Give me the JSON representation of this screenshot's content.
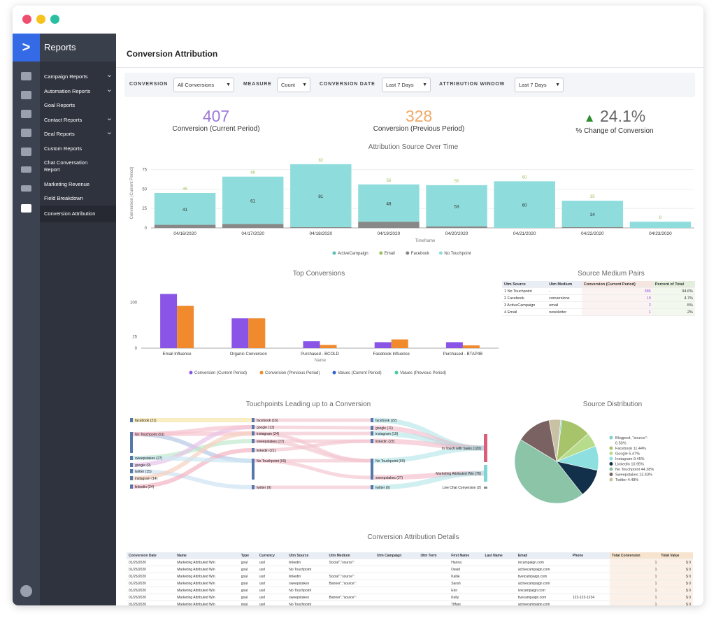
{
  "sidebar": {
    "title": "Reports",
    "items": [
      {
        "label": "Campaign Reports",
        "chevron": true
      },
      {
        "label": "Automation Reports",
        "chevron": true
      },
      {
        "label": "Goal Reports",
        "chevron": false
      },
      {
        "label": "Contact Reports",
        "chevron": true
      },
      {
        "label": "Deal Reports",
        "chevron": true
      },
      {
        "label": "Custom Reports",
        "chevron": false
      },
      {
        "label": "Chat Conversation Report",
        "chevron": false
      },
      {
        "label": "Marketing Revenue",
        "chevron": false
      },
      {
        "label": "Field Breakdown",
        "chevron": false
      },
      {
        "label": "Conversion Attribution",
        "chevron": false,
        "active": true
      }
    ]
  },
  "page": {
    "title": "Conversion Attribution"
  },
  "filters": {
    "conversion_label": "CONVERSION",
    "conversion_value": "All Conversions",
    "measure_label": "MEASURE",
    "measure_value": "Count",
    "date_label": "CONVERSION DATE",
    "date_value": "Last 7 Days",
    "window_label": "ATTRIBUTION WINDOW",
    "window_value": "Last 7 Days"
  },
  "kpis": {
    "current_value": "407",
    "current_label": "Conversion (Current Period)",
    "previous_value": "328",
    "previous_label": "Conversion (Previous Period)",
    "change_value": "24.1%",
    "change_label": "% Change of Conversion",
    "colors": {
      "current": "#9b7bd6",
      "previous": "#f0a868",
      "change": "#666666",
      "arrow": "#2e8b2e"
    }
  },
  "chart_data": [
    {
      "type": "bar",
      "title": "Attribution Source Over Time",
      "xlabel": "Timeframe",
      "ylabel": "Conversion (Current Period)",
      "categories": [
        "04/16/2020",
        "04/17/2020",
        "04/18/2020",
        "04/19/2020",
        "04/20/2020",
        "04/21/2020",
        "04/22/2020",
        "04/23/2020"
      ],
      "totals": [
        45,
        66,
        82,
        56,
        55,
        60,
        35,
        8
      ],
      "inner_labels": [
        41,
        61,
        81,
        48,
        53,
        60,
        34,
        null
      ],
      "series": [
        {
          "name": "ActiveCampaign",
          "values": [
            0,
            0,
            0,
            0,
            0,
            0,
            0,
            0
          ],
          "color": "#5bbfb5"
        },
        {
          "name": "Email",
          "values": [
            0,
            0,
            0,
            0,
            0,
            0,
            0,
            0
          ],
          "color": "#9bc15a"
        },
        {
          "name": "Facebook",
          "values": [
            4,
            5,
            1,
            8,
            2,
            0,
            1,
            0
          ],
          "color": "#888888"
        },
        {
          "name": "No Touchpoint",
          "values": [
            41,
            61,
            81,
            48,
            53,
            60,
            34,
            8
          ],
          "color": "#8fdcdc"
        }
      ],
      "ylim": [
        0,
        90
      ],
      "yticks": [
        0,
        25,
        50,
        75
      ]
    },
    {
      "type": "bar",
      "title": "Top Conversions",
      "xlabel": "Name",
      "categories": [
        "Email Influence",
        "Organic Conversion",
        "Purchased - BCOLD",
        "Facebook Influence",
        "Purchased - BTAP4B"
      ],
      "series": [
        {
          "name": "Conversion (Current Period)",
          "values": [
            118,
            65,
            15,
            13,
            13
          ],
          "color": "#8a55e6"
        },
        {
          "name": "Conversion (Previous Period)",
          "values": [
            92,
            65,
            7,
            19,
            6
          ],
          "color": "#f08a2c"
        },
        {
          "name": "Values (Current Period)",
          "values": [
            0,
            0,
            0,
            0,
            0
          ],
          "color": "#2f5fd0"
        },
        {
          "name": "Values (Previous Period)",
          "values": [
            0,
            0,
            0,
            0,
            0
          ],
          "color": "#3fcf9f"
        }
      ],
      "ylim": [
        0,
        140
      ],
      "yticks": [
        0,
        25,
        100
      ]
    },
    {
      "type": "pie",
      "title": "Source Distribution",
      "slices": [
        {
          "label": "Blogpost, \"source\":",
          "value": 0.5,
          "color": "#7fd0cf"
        },
        {
          "label": "Facebook",
          "value": 11.44,
          "color": "#a8c46a"
        },
        {
          "label": "Google",
          "value": 5.47,
          "color": "#b7dc8b"
        },
        {
          "label": "Instagram",
          "value": 9.45,
          "color": "#8ee0e0"
        },
        {
          "label": "LinkedIn",
          "value": 10.95,
          "color": "#13304a"
        },
        {
          "label": "No Touchpoint",
          "value": 44.28,
          "color": "#8cc4a8"
        },
        {
          "label": "Sweepstakes",
          "value": 13.43,
          "color": "#7a6262"
        },
        {
          "label": "Twitter",
          "value": 4.48,
          "color": "#c9c1a4"
        }
      ],
      "legend": [
        "Blogpost, \"source\":",
        "0.50%",
        "Facebook 11.44%",
        "Google 5.47%",
        "Instagram 9.45%",
        "LinkedIn 10.95%",
        "No Touchpoint 44.28%",
        "Sweepstakes 13.43%",
        "Twitter 4.48%"
      ]
    }
  ],
  "source_medium": {
    "title": "Source Medium Pairs",
    "headers": [
      "Utm Source",
      "Utm Medium",
      "Conversion (Current Period)",
      "Percent of Total"
    ],
    "rows": [
      {
        "idx": "1",
        "source": "No Touchpoint",
        "medium": "-",
        "conv": "385",
        "pct": "94.6%"
      },
      {
        "idx": "2",
        "source": "Facebook",
        "medium": "conversions",
        "conv": "19",
        "pct": "4.7%"
      },
      {
        "idx": "3",
        "source": "ActiveCampaign",
        "medium": "email",
        "conv": "2",
        "pct": ".5%"
      },
      {
        "idx": "4",
        "source": "Email",
        "medium": "newsletter",
        "conv": "1",
        "pct": ".2%"
      }
    ]
  },
  "sankey": {
    "title": "Touchpoints Leading up to a Conversion",
    "col1": [
      "facebook (21)",
      "No Touchpoint (91)",
      "sweepstakes (27)",
      "google (9)",
      "twitter (15)",
      "instagram (14)",
      "linkedin (24)"
    ],
    "col2": [
      "facebook (16)",
      "google (13)",
      "instagram (24)",
      "sweepstakes (27)",
      "linkedin (21)",
      "No Touchpoint (69)",
      "twitter (9)"
    ],
    "col3": [
      "facebook (22)",
      "google (11)",
      "instagram (19)",
      "linkedin (23)",
      "No Touchpoint (69)",
      "sweepstakes (27)",
      "twitter (6)"
    ],
    "col4": [
      "In Touch with Sales (120)",
      "Marketing Attributed Win (76)",
      "Live Chat Conversion (2)"
    ]
  },
  "details": {
    "title": "Conversion Attribution Details",
    "headers": [
      "Conversion Date",
      "Name",
      "Type",
      "Currency",
      "Utm Source",
      "Utm Medium",
      "Utm Campaign",
      "Utm Term",
      "First Name",
      "Last Name",
      "Email",
      "Phone",
      "Total Conversion",
      "Total Value"
    ],
    "rows": [
      [
        "01/25/2020",
        "Marketing Attributed Win",
        "goal",
        "usd",
        "linkedin",
        "Social\",\"source\":",
        "",
        "",
        "Hanna",
        "",
        "recampaign.com",
        "",
        "1",
        "$ 0"
      ],
      [
        "01/25/2020",
        "Marketing Attributed Win",
        "goal",
        "usd",
        "No Touchpoint",
        "",
        "",
        "",
        "David",
        "",
        "activecampaign.com",
        "",
        "1",
        "$ 0"
      ],
      [
        "01/25/2020",
        "Marketing Attributed Win",
        "goal",
        "usd",
        "linkedin",
        "Social\",\"source\":",
        "",
        "",
        "Kallie",
        "",
        "tiveicampaign.com",
        "",
        "1",
        "$ 0"
      ],
      [
        "01/25/2020",
        "Marketing Attributed Win",
        "goal",
        "usd",
        "sweepstakes",
        "Banner\",\"source\":",
        "",
        "",
        "Sarah",
        "",
        "activecampaign.com",
        "",
        "1",
        "$ 0"
      ],
      [
        "01/25/2020",
        "Marketing Attributed Win",
        "goal",
        "usd",
        "No Touchpoint",
        "",
        "",
        "",
        "Erin",
        "",
        "ivecampaign.com",
        "",
        "1",
        "$ 0"
      ],
      [
        "01/25/2020",
        "Marketing Attributed Win",
        "goal",
        "usd",
        "sweepstakes",
        "Banner\",\"source\":",
        "",
        "",
        "Kelly",
        "",
        "tivecampaign.com",
        "123-123-1234",
        "1",
        "$ 0"
      ],
      [
        "01/25/2020",
        "Marketing Attributed Win",
        "goal",
        "usd",
        "No Touchpoint",
        "",
        "",
        "",
        "Tiffani",
        "",
        "activecampaign.com",
        "",
        "1",
        "$ 0"
      ]
    ]
  }
}
